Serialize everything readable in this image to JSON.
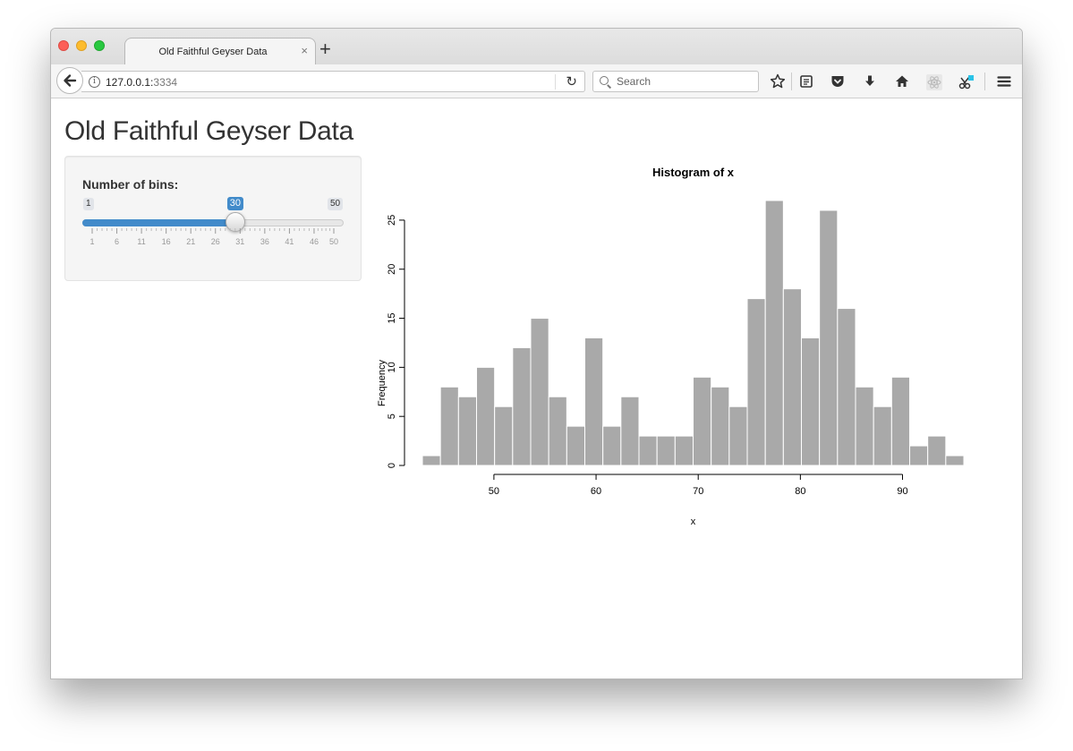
{
  "browser": {
    "tab_title": "Old Faithful Geyser Data",
    "tab_close": "×",
    "new_tab": "+",
    "url_host": "127.0.0.1:",
    "url_port": "3334",
    "search_placeholder": "Search"
  },
  "page": {
    "title": "Old Faithful Geyser Data"
  },
  "slider": {
    "label": "Number of bins:",
    "min": 1,
    "max": 50,
    "value": 30,
    "min_label": "1",
    "max_label": "50",
    "value_label": "30",
    "tick_labels": [
      "1",
      "6",
      "11",
      "16",
      "21",
      "26",
      "31",
      "36",
      "41",
      "46",
      "50"
    ],
    "accent_color": "#428bca"
  },
  "chart_data": {
    "type": "bar",
    "title": "Histogram of x",
    "xlabel": "x",
    "ylabel": "Frequency",
    "bar_color": "#a9a9a9",
    "x_ticks": [
      50,
      60,
      70,
      80,
      90
    ],
    "y_ticks": [
      0,
      5,
      10,
      15,
      20,
      25
    ],
    "xlim": [
      43,
      96
    ],
    "ylim": [
      0,
      27
    ],
    "bin_start": 43.0,
    "bin_width": 1.7667,
    "values": [
      1,
      8,
      7,
      10,
      6,
      12,
      15,
      7,
      4,
      13,
      4,
      7,
      3,
      3,
      3,
      9,
      8,
      6,
      17,
      27,
      18,
      13,
      26,
      16,
      8,
      6,
      9,
      2,
      3,
      1
    ]
  }
}
